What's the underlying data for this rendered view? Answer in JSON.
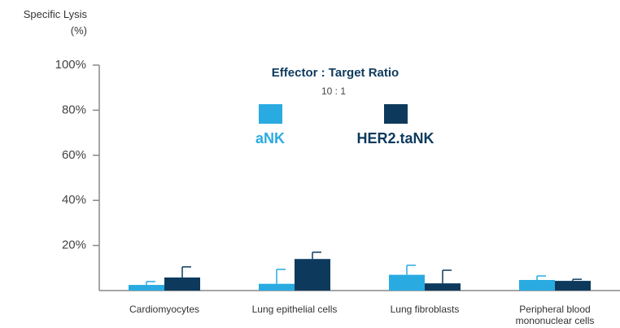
{
  "chart_data": {
    "type": "bar",
    "y_label": "Specific Lysis (%)",
    "legend_title": "Effector : Target Ratio",
    "legend_subtitle": "10 : 1",
    "categories": [
      "Cardiomyocytes",
      "Lung epithelial cells",
      "Lung fibroblasts",
      "Peripheral blood mononuclear cells"
    ],
    "series": [
      {
        "name": "aNK",
        "color": "#29abe2",
        "values": [
          2.5,
          3,
          7,
          4.7
        ],
        "errors": [
          1.5,
          6.4,
          4.2,
          1.8
        ]
      },
      {
        "name": "HER2.taNK",
        "color": "#0d3a5c",
        "values": [
          5.8,
          14,
          3.2,
          4.3
        ],
        "errors": [
          4.7,
          3,
          5.8,
          0.7
        ]
      }
    ],
    "ylim": [
      0,
      100
    ],
    "yticks": [
      {
        "value": 20,
        "label": "20%"
      },
      {
        "value": 40,
        "label": "40%"
      },
      {
        "value": 60,
        "label": "60%"
      },
      {
        "value": 80,
        "label": "80%"
      },
      {
        "value": 100,
        "label": "100%"
      }
    ]
  }
}
